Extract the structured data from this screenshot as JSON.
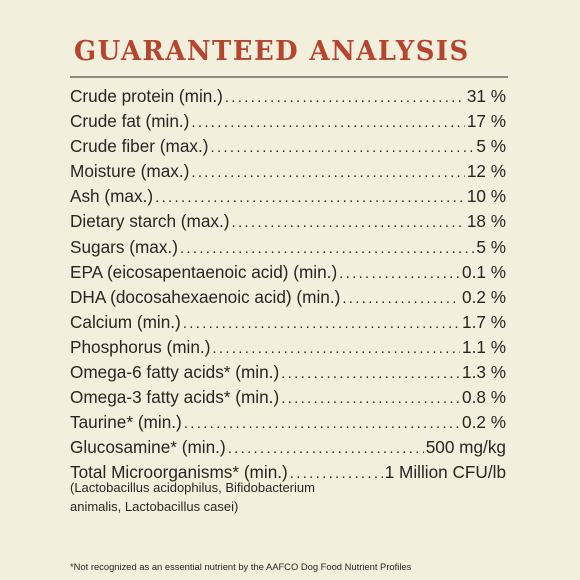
{
  "title": "GUARANTEED ANALYSIS",
  "rows": [
    {
      "label": "Crude protein (min.)",
      "value": "31 %"
    },
    {
      "label": "Crude fat (min.)",
      "value": "17 %"
    },
    {
      "label": "Crude fiber (max.)",
      "value": "5 %"
    },
    {
      "label": "Moisture (max.)",
      "value": "12 %"
    },
    {
      "label": "Ash (max.)",
      "value": "10 %"
    },
    {
      "label": "Dietary starch (max.)",
      "value": "18 %"
    },
    {
      "label": "Sugars (max.)",
      "value": "5 %"
    },
    {
      "label": "EPA (eicosapentaenoic acid) (min.)",
      "value": "0.1 %"
    },
    {
      "label": "DHA (docosahexaenoic acid) (min.)",
      "value": "0.2 %"
    },
    {
      "label": "Calcium (min.)",
      "value": "1.7 %"
    },
    {
      "label": "Phosphorus (min.)",
      "value": "1.1 %"
    },
    {
      "label": "Omega-6 fatty acids* (min.)",
      "value": "1.3 %"
    },
    {
      "label": "Omega-3 fatty acids* (min.)",
      "value": "0.8 %"
    },
    {
      "label": "Taurine* (min.)",
      "value": "0.2 %"
    },
    {
      "label": "Glucosamine* (min.)",
      "value": "500 mg/kg"
    },
    {
      "label": "Total Microorganisms* (min.)",
      "value": "1 Million CFU/lb"
    }
  ],
  "microorganisms_note": "(Lactobacillus acidophilus, Bifidobacterium animalis, Lactobacillus casei)",
  "footnote": "*Not recognized as an essential nutrient by the AAFCO Dog Food Nutrient Profiles",
  "colors": {
    "title": "#b6452f",
    "background": "#f3efdd",
    "text": "#2a2522",
    "rule": "#8c8983"
  }
}
